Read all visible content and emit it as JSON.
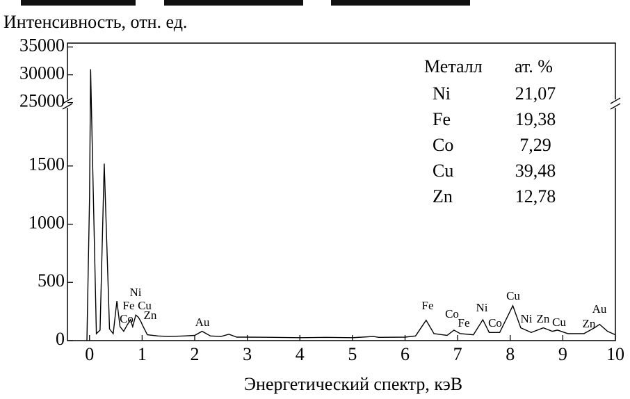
{
  "chart_data": {
    "type": "line",
    "title": "Интенсивность, отн. ед.",
    "x_label": "Энергетический спектр, кэВ",
    "x": [
      -0.05,
      0,
      0.02,
      0.06,
      0.13,
      0.2,
      0.28,
      0.38,
      0.45,
      0.52,
      0.58,
      0.65,
      0.71,
      0.78,
      0.82,
      0.88,
      0.93,
      0.98,
      1.01,
      1.1,
      1.3,
      1.5,
      1.8,
      2.0,
      2.14,
      2.3,
      2.5,
      2.65,
      2.8,
      3.0,
      3.5,
      4.0,
      4.5,
      5.0,
      5.4,
      5.5,
      6.0,
      6.2,
      6.4,
      6.55,
      6.8,
      6.93,
      7.05,
      7.3,
      7.48,
      7.6,
      7.8,
      8.05,
      8.2,
      8.4,
      8.63,
      8.8,
      8.9,
      9.1,
      9.4,
      9.6,
      9.7,
      9.85,
      10.0
    ],
    "values": [
      0,
      8000,
      31000,
      1500,
      60,
      90,
      1520,
      100,
      60,
      340,
      120,
      80,
      130,
      180,
      120,
      220,
      200,
      160,
      130,
      50,
      40,
      35,
      40,
      45,
      80,
      40,
      35,
      55,
      30,
      30,
      28,
      25,
      28,
      25,
      35,
      28,
      30,
      40,
      175,
      60,
      45,
      90,
      60,
      50,
      180,
      70,
      70,
      300,
      110,
      70,
      110,
      80,
      90,
      60,
      60,
      110,
      140,
      80,
      50
    ],
    "color": "#000000",
    "xlim": [
      -0.42,
      10
    ],
    "xticks": [
      0,
      1,
      2,
      3,
      4,
      5,
      6,
      7,
      8,
      9,
      10
    ],
    "ylim": [
      0,
      35700
    ],
    "y_break": [
      2030,
      24700
    ],
    "yticks": [
      0,
      500,
      1000,
      1500,
      25000,
      30000,
      35000
    ],
    "annotations": [
      "Ni",
      "Fe",
      "Cu",
      "Co",
      "Zn",
      "Au",
      "Fe",
      "Co",
      "Fe",
      "Ni",
      "Co",
      "Cu",
      "Ni",
      "Zn",
      "Cu",
      "Au",
      "Zn"
    ],
    "table": {
      "header": [
        "Металл",
        "ат. %"
      ],
      "rows": [
        [
          "Ni",
          "21,07"
        ],
        [
          "Fe",
          "19,38"
        ],
        [
          "Co",
          "7,29"
        ],
        [
          "Cu",
          "39,48"
        ],
        [
          "Zn",
          "12,78"
        ]
      ]
    }
  }
}
